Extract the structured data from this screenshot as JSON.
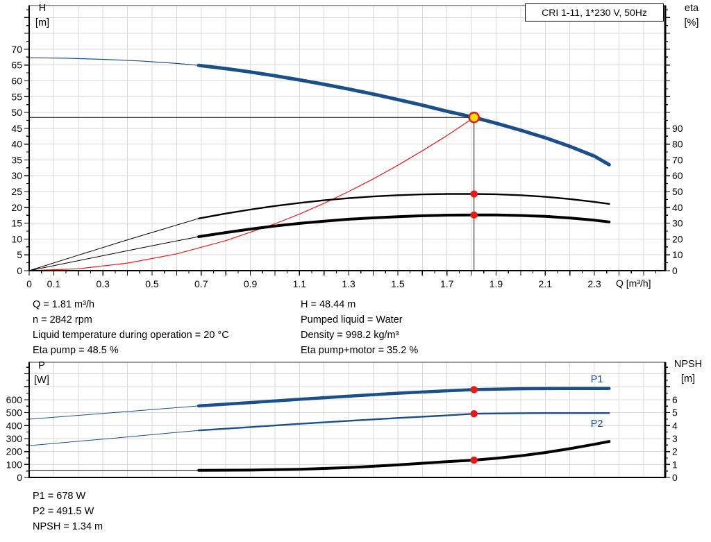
{
  "title_box": {
    "text": "CRI 1-11, 1*230 V, 50Hz"
  },
  "axis_titles": {
    "top_left": [
      "H",
      "[m]"
    ],
    "top_right": [
      "eta",
      "[%]"
    ],
    "x": "Q [m³/h]",
    "bottom_left": [
      "P",
      "[W]"
    ],
    "bottom_right": [
      "NPSH",
      "[m]"
    ]
  },
  "info_top": {
    "left": [
      "Q = 1.81 m³/h",
      "n = 2842 rpm",
      "Liquid temperature during operation = 20 °C",
      "Eta pump = 48.5 %"
    ],
    "right": [
      "H = 48.44 m",
      "Pumped liquid = Water",
      "Density = 998.2 kg/m³",
      "Eta pump+motor = 35.2 %"
    ]
  },
  "info_bottom": [
    "P1 = 678 W",
    "P2 = 491.5 W",
    "NPSH = 1.34 m"
  ],
  "colors": {
    "curve_blue": "#1a4f8a",
    "curve_red": "#e41c17",
    "axis_black": "#000000",
    "duty_yellow": "#ffe000",
    "grid": "#d9d9d9",
    "ref_line": "#3c3c3c",
    "border_gray": "#9c9c9c"
  },
  "duty_point": {
    "q": 1.81,
    "h": 48.44,
    "eta_pump": 48.5,
    "eta_pump_motor": 35.2,
    "p1": 678,
    "p2": 491.5,
    "npsh": 1.34
  },
  "chart_data": [
    {
      "type": "line",
      "id": "top",
      "title": "CRI 1-11, 1*230 V, 50Hz",
      "xlabel": "Q [m³/h]",
      "ylabel_left": "H [m]",
      "ylabel_right": "eta [%]",
      "x_axis": {
        "min": 0,
        "max": 2.588,
        "major": 0.1,
        "minor": 0.05,
        "show_ticks": true,
        "labels": [
          "0",
          "0.1",
          "0.3",
          "0.5",
          "0.7",
          "0.9",
          "1.1",
          "1.3",
          "1.5",
          "1.7",
          "1.9",
          "2.1",
          "2.3"
        ]
      },
      "left_axis": {
        "min": 0,
        "max": 83.8,
        "major": 5,
        "minor": 2.5,
        "label_max": 70
      },
      "right_axis": {
        "min": 0,
        "max": 167.6,
        "major": 10,
        "minor": 5,
        "label_max": 90
      },
      "series": [
        {
          "name": "head-curve-extension",
          "axis": "left",
          "color": "blue",
          "width": 1.2,
          "points": [
            [
              0,
              67.3
            ],
            [
              0.15,
              67.15
            ],
            [
              0.3,
              66.8
            ],
            [
              0.45,
              66.3
            ],
            [
              0.6,
              65.5
            ],
            [
              0.69,
              64.9
            ]
          ]
        },
        {
          "name": "head-curve",
          "axis": "left",
          "color": "blue",
          "width": 5,
          "points": [
            [
              0.69,
              64.9
            ],
            [
              0.8,
              63.85
            ],
            [
              0.9,
              62.8
            ],
            [
              1.0,
              61.6
            ],
            [
              1.1,
              60.3
            ],
            [
              1.2,
              58.9
            ],
            [
              1.3,
              57.4
            ],
            [
              1.4,
              55.8
            ],
            [
              1.5,
              54.1
            ],
            [
              1.6,
              52.3
            ],
            [
              1.7,
              50.4
            ],
            [
              1.81,
              48.44
            ],
            [
              1.9,
              46.6
            ],
            [
              2.0,
              44.4
            ],
            [
              2.1,
              42.0
            ],
            [
              2.2,
              39.3
            ],
            [
              2.3,
              36.2
            ],
            [
              2.36,
              33.5
            ]
          ]
        },
        {
          "name": "system-curve",
          "axis": "left",
          "color": "red",
          "width": 1.2,
          "points": [
            [
              0,
              0
            ],
            [
              0.2,
              0.6
            ],
            [
              0.4,
              2.4
            ],
            [
              0.6,
              5.3
            ],
            [
              0.8,
              9.5
            ],
            [
              1.0,
              14.8
            ],
            [
              1.1,
              17.9
            ],
            [
              1.2,
              21.3
            ],
            [
              1.3,
              25.0
            ],
            [
              1.4,
              29.0
            ],
            [
              1.5,
              33.3
            ],
            [
              1.6,
              37.9
            ],
            [
              1.7,
              42.7
            ],
            [
              1.81,
              48.44
            ]
          ]
        },
        {
          "name": "eta-pump-curve-extension",
          "axis": "right",
          "color": "black",
          "width": 1,
          "points": [
            [
              0,
              0
            ],
            [
              0.2,
              9.8
            ],
            [
              0.4,
              19.5
            ],
            [
              0.55,
              26.5
            ],
            [
              0.69,
              33
            ]
          ]
        },
        {
          "name": "eta-pump-curve",
          "axis": "right",
          "color": "black",
          "width": 2.4,
          "points": [
            [
              0.69,
              33
            ],
            [
              0.8,
              36.1
            ],
            [
              0.9,
              38.6
            ],
            [
              1.0,
              40.9
            ],
            [
              1.1,
              42.8
            ],
            [
              1.2,
              44.5
            ],
            [
              1.3,
              45.8
            ],
            [
              1.4,
              46.9
            ],
            [
              1.5,
              47.7
            ],
            [
              1.6,
              48.2
            ],
            [
              1.7,
              48.5
            ],
            [
              1.81,
              48.5
            ],
            [
              1.9,
              48.3
            ],
            [
              2.0,
              47.7
            ],
            [
              2.1,
              46.7
            ],
            [
              2.2,
              45.3
            ],
            [
              2.3,
              43.5
            ],
            [
              2.36,
              42.2
            ]
          ]
        },
        {
          "name": "eta-pump-motor-curve-extension",
          "axis": "right",
          "color": "black",
          "width": 1,
          "points": [
            [
              0,
              0
            ],
            [
              0.2,
              6.3
            ],
            [
              0.4,
              12.6
            ],
            [
              0.55,
              17.3
            ],
            [
              0.69,
              21.5
            ]
          ]
        },
        {
          "name": "eta-pump-motor-curve",
          "axis": "right",
          "color": "black",
          "width": 4,
          "points": [
            [
              0.69,
              21.5
            ],
            [
              0.8,
              24.1
            ],
            [
              0.9,
              26.3
            ],
            [
              1.0,
              28.2
            ],
            [
              1.1,
              29.9
            ],
            [
              1.2,
              31.3
            ],
            [
              1.3,
              32.5
            ],
            [
              1.4,
              33.4
            ],
            [
              1.5,
              34.1
            ],
            [
              1.6,
              34.7
            ],
            [
              1.7,
              35.1
            ],
            [
              1.81,
              35.2
            ],
            [
              1.9,
              35.2
            ],
            [
              2.0,
              34.9
            ],
            [
              2.1,
              34.3
            ],
            [
              2.2,
              33.3
            ],
            [
              2.3,
              31.9
            ],
            [
              2.36,
              30.8
            ]
          ]
        }
      ],
      "ref_lines": [
        {
          "name": "head-reference-line",
          "type": "h",
          "value": 48.44,
          "q_to": 1.81
        },
        {
          "name": "flow-reference-line",
          "type": "v",
          "q": 1.81,
          "value_from": 48.44
        }
      ],
      "markers": [
        {
          "name": "duty-point",
          "style": "duty",
          "axis": "left",
          "q": 1.81,
          "value": 48.44
        },
        {
          "name": "eta-pump-point",
          "style": "dot",
          "axis": "right",
          "q": 1.81,
          "value": 48.5
        },
        {
          "name": "eta-pump-motor-point",
          "style": "dot",
          "axis": "right",
          "q": 1.81,
          "value": 35.2
        }
      ]
    },
    {
      "type": "line",
      "id": "bottom",
      "title": "",
      "xlabel": "",
      "ylabel_left": "P [W]",
      "ylabel_right": "NPSH [m]",
      "x_axis": {
        "min": 0,
        "max": 2.588,
        "major": 0.1,
        "minor": 0.05,
        "show_ticks": false,
        "labels": []
      },
      "left_axis": {
        "min": 0,
        "max": 889,
        "major": 100,
        "minor": 50,
        "label_max": 600
      },
      "right_axis": {
        "min": 0,
        "max": 8.89,
        "major": 1,
        "minor": 0.5,
        "label_max": 6
      },
      "series": [
        {
          "name": "p1-curve-extension",
          "axis": "left",
          "color": "blue",
          "width": 1,
          "points": [
            [
              0,
              450
            ],
            [
              0.35,
              501
            ],
            [
              0.69,
              552
            ]
          ]
        },
        {
          "name": "p1-curve",
          "axis": "left",
          "color": "blue",
          "width": 4.5,
          "points": [
            [
              0.69,
              552
            ],
            [
              0.9,
              578
            ],
            [
              1.1,
              603
            ],
            [
              1.3,
              627
            ],
            [
              1.5,
              650
            ],
            [
              1.7,
              669
            ],
            [
              1.81,
              678
            ],
            [
              1.9,
              682
            ],
            [
              2.0,
              685
            ],
            [
              2.1,
              686
            ],
            [
              2.2,
              687
            ],
            [
              2.36,
              687
            ]
          ]
        },
        {
          "name": "p2-curve-extension",
          "axis": "left",
          "color": "blue",
          "width": 1,
          "points": [
            [
              0,
              246
            ],
            [
              0.35,
              304
            ],
            [
              0.69,
              363
            ]
          ]
        },
        {
          "name": "p2-curve",
          "axis": "left",
          "color": "blue",
          "width": 2.4,
          "points": [
            [
              0.69,
              363
            ],
            [
              0.9,
              389
            ],
            [
              1.1,
              414
            ],
            [
              1.3,
              437
            ],
            [
              1.5,
              459
            ],
            [
              1.7,
              479
            ],
            [
              1.81,
              491.5
            ],
            [
              1.9,
              494
            ],
            [
              2.0,
              496
            ],
            [
              2.1,
              497
            ],
            [
              2.2,
              497
            ],
            [
              2.36,
              497
            ]
          ]
        },
        {
          "name": "npsh-curve-extension",
          "axis": "right",
          "color": "black",
          "width": 1,
          "points": [
            [
              0,
              0.55
            ],
            [
              0.69,
              0.55
            ]
          ]
        },
        {
          "name": "npsh-curve",
          "axis": "right",
          "color": "black",
          "width": 4,
          "points": [
            [
              0.69,
              0.55
            ],
            [
              0.9,
              0.57
            ],
            [
              1.1,
              0.63
            ],
            [
              1.3,
              0.76
            ],
            [
              1.5,
              0.97
            ],
            [
              1.7,
              1.22
            ],
            [
              1.81,
              1.34
            ],
            [
              1.9,
              1.48
            ],
            [
              2.0,
              1.67
            ],
            [
              2.1,
              1.92
            ],
            [
              2.2,
              2.22
            ],
            [
              2.3,
              2.56
            ],
            [
              2.36,
              2.78
            ]
          ]
        }
      ],
      "ref_lines": [],
      "markers": [
        {
          "name": "p1-point",
          "style": "dot",
          "axis": "left",
          "q": 1.81,
          "value": 678
        },
        {
          "name": "p2-point",
          "style": "dot",
          "axis": "left",
          "q": 1.81,
          "value": 491.5
        },
        {
          "name": "npsh-point",
          "style": "dot",
          "axis": "right",
          "q": 1.81,
          "value": 1.34
        }
      ],
      "series_labels": [
        {
          "name": "p1-label",
          "text": "P1",
          "axis": "left",
          "q": 2.285,
          "value": 735
        },
        {
          "name": "p2-label",
          "text": "P2",
          "axis": "left",
          "q": 2.285,
          "value": 392
        }
      ]
    }
  ]
}
